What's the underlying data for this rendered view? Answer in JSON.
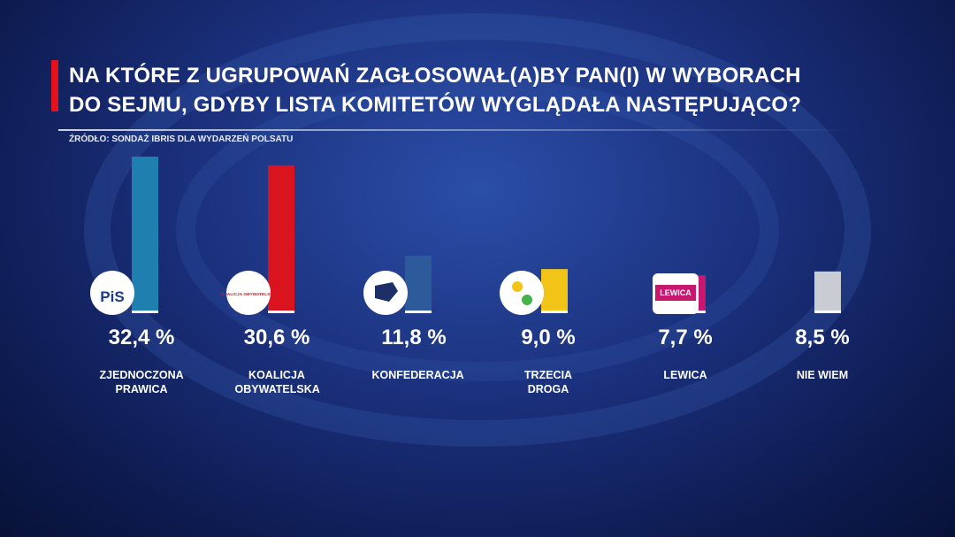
{
  "chart_data": {
    "type": "bar",
    "title": [
      "NA KTÓRE Z UGRUPOWAŃ ZAGŁOSOWAŁ(A)BY PAN(I) W WYBORACH",
      "DO SEJMU, GDYBY LISTA KOMITETÓW WYGLĄDAŁA NASTĘPUJĄCO?"
    ],
    "subtitle": "ŹRÓDŁO: SONDAŻ IBRIS DLA WYDARZEŃ POLSATU",
    "categories": [
      "ZJEDNOCZONA PRAWICA",
      "KOALICJA OBYWATELSKA",
      "KONFEDERACJA",
      "TRZECIA DROGA",
      "LEWICA",
      "NIE WIEM"
    ],
    "values": [
      32.4,
      30.6,
      11.8,
      9.0,
      7.7,
      8.5
    ],
    "value_labels": [
      "32,4 %",
      "30,6 %",
      "11,8 %",
      "9,0 %",
      "7,7 %",
      "8,5 %"
    ],
    "colors": [
      "#1f7fae",
      "#d9141f",
      "#2d5a9a",
      "#f2c418",
      "#c8176e",
      "#c9ccd2"
    ],
    "logos": [
      "PiS",
      "KOALICJA OBYWATELSKA",
      null,
      null,
      "LEWICA",
      null
    ]
  }
}
